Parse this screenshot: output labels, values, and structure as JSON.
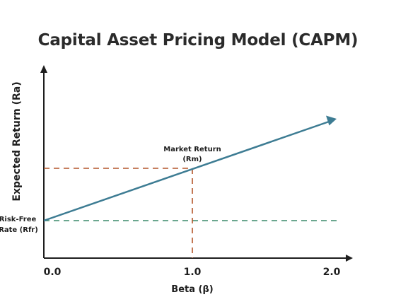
{
  "title": "Capital Asset Pricing Model (CAPM)",
  "axes": {
    "ylabel": "Expected Return (Ra)",
    "xlabel": "Beta (β)",
    "x_ticks": [
      "0.0",
      "1.0",
      "2.0"
    ]
  },
  "annotations": {
    "risk_free_line1": "Risk-Free",
    "risk_free_line2": "Rate (Rfr)",
    "market_line1": "Market Return",
    "market_line2": "(Rm)"
  },
  "colors": {
    "sml_line": "#3d7c93",
    "market_guide": "#b4552a",
    "risk_free_guide": "#3a8a6a",
    "axis": "#1e1e1e"
  },
  "chart_data": {
    "type": "line",
    "title": "Capital Asset Pricing Model (CAPM)",
    "xlabel": "Beta (β)",
    "ylabel": "Expected Return (Ra)",
    "x_ticks": [
      0.0,
      1.0,
      2.0
    ],
    "xlim": [
      0.0,
      2.0
    ],
    "series": [
      {
        "x": [
          0.0,
          1.0,
          2.0
        ],
        "y": [
          "Rfr",
          "Rm",
          null
        ]
      }
    ],
    "reference_lines": [
      {
        "label": "Risk-Free Rate (Rfr)",
        "orientation": "horizontal",
        "style": "dashed"
      },
      {
        "label": "Market Return (Rm)",
        "orientation": "horizontal",
        "style": "dashed"
      },
      {
        "orientation": "vertical",
        "x": 1.0,
        "style": "dashed"
      }
    ]
  }
}
